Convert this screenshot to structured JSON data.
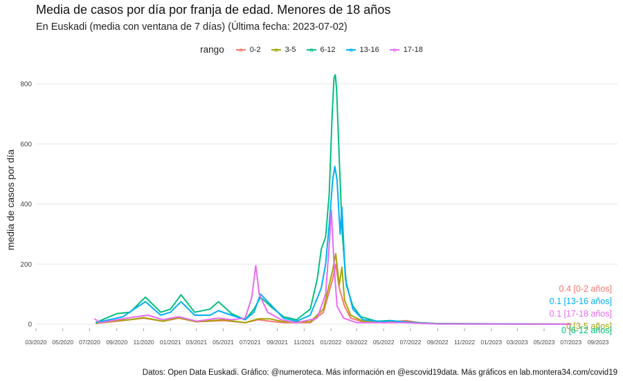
{
  "title": "Media de casos por día por franja de edad. Menores de 18 años",
  "subtitle": "En Euskadi (media con ventana de 7 días)  (Última fecha: 2023-07-02)",
  "caption": "Datos: Open Data Euskadi. Gráfico: @numeroteca. Más información en @escovid19data.  Más gráficos en lab.montera34.com/covid19",
  "legend": {
    "title": "rango",
    "items": [
      {
        "label": "0-2",
        "color": "#F8766D"
      },
      {
        "label": "3-5",
        "color": "#A3A500"
      },
      {
        "label": "6-12",
        "color": "#00BF7D"
      },
      {
        "label": "13-16",
        "color": "#00B0F6"
      },
      {
        "label": "17-18",
        "color": "#E76BF3"
      }
    ]
  },
  "chart_data": {
    "type": "line",
    "title": "Media de casos por día por franja de edad. Menores de 18 años",
    "ylabel": "media de casos por día",
    "xlabel": "",
    "ylim": [
      0,
      860
    ],
    "yticks": [
      0,
      200,
      400,
      600,
      800
    ],
    "x_range": [
      "2020-03-01",
      "2023-10-15"
    ],
    "xticks": [
      "03/2020",
      "05/2020",
      "07/2020",
      "09/2020",
      "11/2020",
      "01/2021",
      "03/2021",
      "05/2021",
      "07/2021",
      "09/2021",
      "11/2021",
      "01/2022",
      "03/2022",
      "05/2022",
      "07/2022",
      "09/2022",
      "11/2022",
      "01/2023",
      "03/2023",
      "05/2023",
      "07/2023",
      "09/2023"
    ],
    "grid": true,
    "legend_position": "top",
    "series": [
      {
        "name": "0-2",
        "color": "#F8766D",
        "end_label": "0.4 [0-2 años]",
        "points": [
          [
            "2020-07-15",
            3
          ],
          [
            "2020-09-01",
            10
          ],
          [
            "2020-10-01",
            15
          ],
          [
            "2020-11-01",
            20
          ],
          [
            "2020-12-15",
            10
          ],
          [
            "2021-01-20",
            20
          ],
          [
            "2021-03-01",
            8
          ],
          [
            "2021-05-01",
            12
          ],
          [
            "2021-06-20",
            5
          ],
          [
            "2021-07-20",
            15
          ],
          [
            "2021-08-15",
            10
          ],
          [
            "2021-09-15",
            5
          ],
          [
            "2021-11-15",
            5
          ],
          [
            "2021-12-15",
            40
          ],
          [
            "2022-01-05",
            150
          ],
          [
            "2022-01-12",
            200
          ],
          [
            "2022-01-20",
            120
          ],
          [
            "2022-02-01",
            60
          ],
          [
            "2022-02-15",
            20
          ],
          [
            "2022-03-15",
            8
          ],
          [
            "2022-05-01",
            5
          ],
          [
            "2022-06-20",
            12
          ],
          [
            "2022-07-20",
            5
          ],
          [
            "2022-09-01",
            2
          ],
          [
            "2023-07-02",
            0.4
          ]
        ]
      },
      {
        "name": "3-5",
        "color": "#A3A500",
        "end_label": "0 [3-5 años]",
        "points": [
          [
            "2020-07-15",
            3
          ],
          [
            "2020-09-01",
            12
          ],
          [
            "2020-10-01",
            15
          ],
          [
            "2020-11-01",
            22
          ],
          [
            "2020-12-15",
            10
          ],
          [
            "2021-01-20",
            22
          ],
          [
            "2021-03-01",
            8
          ],
          [
            "2021-05-01",
            15
          ],
          [
            "2021-06-20",
            5
          ],
          [
            "2021-07-20",
            18
          ],
          [
            "2021-08-15",
            18
          ],
          [
            "2021-09-15",
            8
          ],
          [
            "2021-11-15",
            8
          ],
          [
            "2021-12-15",
            50
          ],
          [
            "2022-01-05",
            180
          ],
          [
            "2022-01-12",
            235
          ],
          [
            "2022-01-20",
            130
          ],
          [
            "2022-01-26",
            190
          ],
          [
            "2022-02-01",
            80
          ],
          [
            "2022-02-15",
            30
          ],
          [
            "2022-03-15",
            10
          ],
          [
            "2022-05-01",
            5
          ],
          [
            "2022-06-20",
            8
          ],
          [
            "2022-07-20",
            4
          ],
          [
            "2022-09-01",
            2
          ],
          [
            "2023-07-02",
            0
          ]
        ]
      },
      {
        "name": "6-12",
        "color": "#00BF7D",
        "end_label": "0 [6-12 años]",
        "points": [
          [
            "2020-07-15",
            5
          ],
          [
            "2020-08-15",
            25
          ],
          [
            "2020-09-01",
            35
          ],
          [
            "2020-10-01",
            40
          ],
          [
            "2020-11-05",
            90
          ],
          [
            "2020-12-10",
            40
          ],
          [
            "2021-01-01",
            50
          ],
          [
            "2021-01-25",
            98
          ],
          [
            "2021-02-25",
            40
          ],
          [
            "2021-04-01",
            50
          ],
          [
            "2021-04-20",
            75
          ],
          [
            "2021-05-20",
            35
          ],
          [
            "2021-06-20",
            15
          ],
          [
            "2021-07-10",
            50
          ],
          [
            "2021-07-25",
            90
          ],
          [
            "2021-08-20",
            55
          ],
          [
            "2021-09-15",
            25
          ],
          [
            "2021-10-15",
            15
          ],
          [
            "2021-11-15",
            50
          ],
          [
            "2021-12-01",
            150
          ],
          [
            "2021-12-10",
            250
          ],
          [
            "2021-12-20",
            290
          ],
          [
            "2021-12-28",
            430
          ],
          [
            "2022-01-04",
            700
          ],
          [
            "2022-01-08",
            820
          ],
          [
            "2022-01-11",
            830
          ],
          [
            "2022-01-14",
            780
          ],
          [
            "2022-01-20",
            550
          ],
          [
            "2022-01-27",
            300
          ],
          [
            "2022-02-05",
            130
          ],
          [
            "2022-02-20",
            60
          ],
          [
            "2022-03-10",
            25
          ],
          [
            "2022-04-15",
            10
          ],
          [
            "2022-05-15",
            12
          ],
          [
            "2022-06-15",
            8
          ],
          [
            "2022-07-20",
            5
          ],
          [
            "2022-09-01",
            2
          ],
          [
            "2023-07-02",
            0
          ]
        ]
      },
      {
        "name": "13-16",
        "color": "#00B0F6",
        "end_label": "0.1 [13-16 años]",
        "points": [
          [
            "2020-07-15",
            5
          ],
          [
            "2020-08-15",
            15
          ],
          [
            "2020-09-15",
            25
          ],
          [
            "2020-10-15",
            55
          ],
          [
            "2020-11-05",
            75
          ],
          [
            "2020-12-10",
            30
          ],
          [
            "2021-01-01",
            40
          ],
          [
            "2021-01-25",
            75
          ],
          [
            "2021-02-25",
            30
          ],
          [
            "2021-04-01",
            30
          ],
          [
            "2021-04-20",
            45
          ],
          [
            "2021-05-20",
            30
          ],
          [
            "2021-06-20",
            15
          ],
          [
            "2021-07-10",
            40
          ],
          [
            "2021-07-25",
            100
          ],
          [
            "2021-08-20",
            60
          ],
          [
            "2021-09-15",
            20
          ],
          [
            "2021-10-15",
            10
          ],
          [
            "2021-11-15",
            30
          ],
          [
            "2021-12-10",
            120
          ],
          [
            "2021-12-20",
            200
          ],
          [
            "2021-12-28",
            330
          ],
          [
            "2022-01-05",
            480
          ],
          [
            "2022-01-10",
            525
          ],
          [
            "2022-01-15",
            480
          ],
          [
            "2022-01-22",
            300
          ],
          [
            "2022-01-26",
            390
          ],
          [
            "2022-02-03",
            150
          ],
          [
            "2022-02-20",
            50
          ],
          [
            "2022-03-15",
            15
          ],
          [
            "2022-05-01",
            8
          ],
          [
            "2022-05-15",
            12
          ],
          [
            "2022-07-01",
            5
          ],
          [
            "2022-09-01",
            1
          ],
          [
            "2023-07-02",
            0.1
          ]
        ]
      },
      {
        "name": "17-18",
        "color": "#E76BF3",
        "end_label": "0.1 [17-18 años]",
        "points": [
          [
            "2020-07-12",
            18
          ],
          [
            "2020-07-25",
            5
          ],
          [
            "2020-09-01",
            15
          ],
          [
            "2020-10-15",
            25
          ],
          [
            "2020-11-10",
            30
          ],
          [
            "2020-12-15",
            15
          ],
          [
            "2021-01-20",
            25
          ],
          [
            "2021-03-01",
            10
          ],
          [
            "2021-04-20",
            20
          ],
          [
            "2021-05-20",
            15
          ],
          [
            "2021-06-20",
            20
          ],
          [
            "2021-07-05",
            90
          ],
          [
            "2021-07-14",
            195
          ],
          [
            "2021-07-22",
            100
          ],
          [
            "2021-08-10",
            40
          ],
          [
            "2021-09-10",
            15
          ],
          [
            "2021-10-15",
            5
          ],
          [
            "2021-12-01",
            20
          ],
          [
            "2021-12-20",
            100
          ],
          [
            "2021-12-28",
            260
          ],
          [
            "2022-01-02",
            380
          ],
          [
            "2022-01-08",
            200
          ],
          [
            "2022-01-15",
            60
          ],
          [
            "2022-01-30",
            20
          ],
          [
            "2022-03-01",
            5
          ],
          [
            "2022-06-15",
            5
          ],
          [
            "2022-09-01",
            1
          ],
          [
            "2023-07-02",
            0.1
          ]
        ]
      }
    ]
  }
}
